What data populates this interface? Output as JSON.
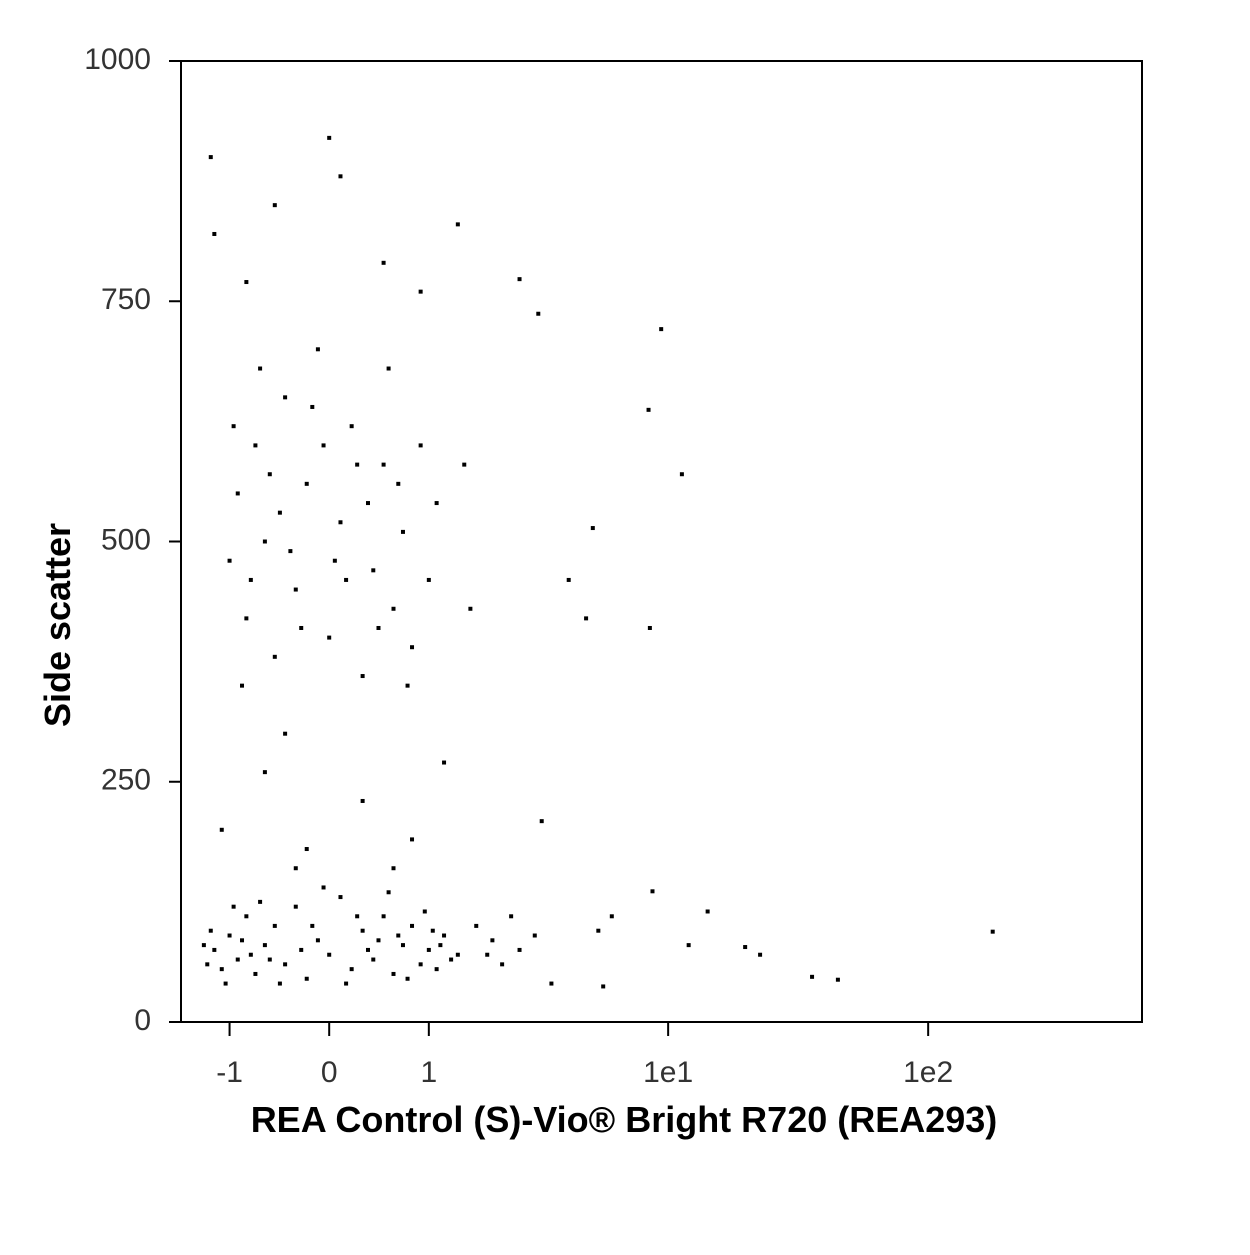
{
  "chart_data": {
    "type": "scatter",
    "x_label": "REA Control (S)-Vio® Bright R720 (REA293)",
    "y_label": "Side scatter",
    "xscale": "asinh",
    "xlim": [
      -1.72,
      663
    ],
    "xticks": [
      -1,
      0,
      1,
      {
        "value": 10,
        "label": "1e1"
      },
      {
        "value": 100,
        "label": "1e2"
      }
    ],
    "ylim": [
      0,
      1000
    ],
    "yticks": [
      0,
      250,
      500,
      750,
      1000
    ],
    "color": "#000000",
    "x": [
      -1.3,
      -1.2,
      -1.1,
      -1.0,
      -0.9,
      -0.8,
      -0.7,
      -0.6,
      -0.5,
      -0.4,
      -0.3,
      -0.2,
      -0.1,
      0,
      0.1,
      0.2,
      0.3,
      0.4,
      0.5,
      0.6,
      0.7,
      0.8,
      0.9,
      1.0,
      1.1,
      1.2,
      1.3,
      1.4,
      -1.25,
      -1.05,
      -0.85,
      -0.65,
      -0.45,
      -0.25,
      -0.05,
      0.15,
      0.35,
      0.55,
      0.75,
      0.95,
      1.15,
      -1.35,
      -0.95,
      -0.55,
      -0.15,
      0.25,
      0.65,
      1.05,
      -0.75,
      0.45,
      -1.0,
      -0.9,
      -0.8,
      -0.7,
      -0.6,
      -0.5,
      -0.4,
      -0.3,
      -0.2,
      -0.1,
      0,
      0.1,
      0.2,
      0.3,
      0.4,
      0.5,
      0.6,
      0.7,
      0.8,
      0.9,
      1.0,
      1.1,
      -0.85,
      -0.65,
      -0.45,
      -0.25,
      -0.05,
      0.15,
      0.35,
      0.55,
      0.75,
      -0.55,
      -0.35,
      -0.15,
      0.05,
      0.25,
      0.45,
      0.65,
      -0.75,
      -0.95,
      -1.1,
      -0.6,
      -0.2,
      0.3,
      0.8,
      1.2,
      -0.4,
      0.6,
      -1.2,
      -0.5,
      0.1,
      0.5,
      -0.8,
      0.9,
      -1.25,
      0,
      1.4,
      -0.3,
      1.5,
      1.6,
      1.7,
      1.9,
      2.0,
      2.2,
      2.4,
      2.6,
      3.0,
      2.6,
      3.1,
      3.2,
      4.1,
      4.8,
      5.1,
      5.36,
      6.05,
      8.4,
      8.7,
      5.6,
      9.4,
      11.3,
      14.2,
      19.8,
      22.6,
      35.8,
      45,
      177,
      8.5,
      12,
      3.5
    ],
    "values": [
      60,
      75,
      55,
      90,
      65,
      110,
      50,
      80,
      100,
      60,
      120,
      45,
      85,
      70,
      130,
      55,
      95,
      65,
      110,
      50,
      80,
      100,
      60,
      75,
      55,
      90,
      65,
      70,
      95,
      40,
      85,
      125,
      40,
      75,
      140,
      40,
      75,
      135,
      45,
      115,
      80,
      80,
      120,
      65,
      100,
      110,
      90,
      95,
      70,
      85,
      480,
      550,
      420,
      600,
      500,
      380,
      650,
      450,
      560,
      700,
      400,
      520,
      620,
      360,
      470,
      580,
      430,
      510,
      390,
      600,
      460,
      540,
      350,
      680,
      530,
      410,
      600,
      460,
      540,
      680,
      350,
      570,
      490,
      640,
      480,
      580,
      410,
      560,
      460,
      620,
      200,
      260,
      180,
      230,
      190,
      270,
      300,
      160,
      820,
      850,
      880,
      790,
      770,
      760,
      900,
      920,
      830,
      160,
      580,
      430,
      100,
      70,
      85,
      60,
      110,
      75,
      90,
      773,
      737,
      209,
      460,
      420,
      514,
      95,
      110,
      637,
      136,
      37,
      721,
      570,
      115,
      78,
      70,
      47,
      44,
      94,
      410,
      80,
      40
    ]
  }
}
